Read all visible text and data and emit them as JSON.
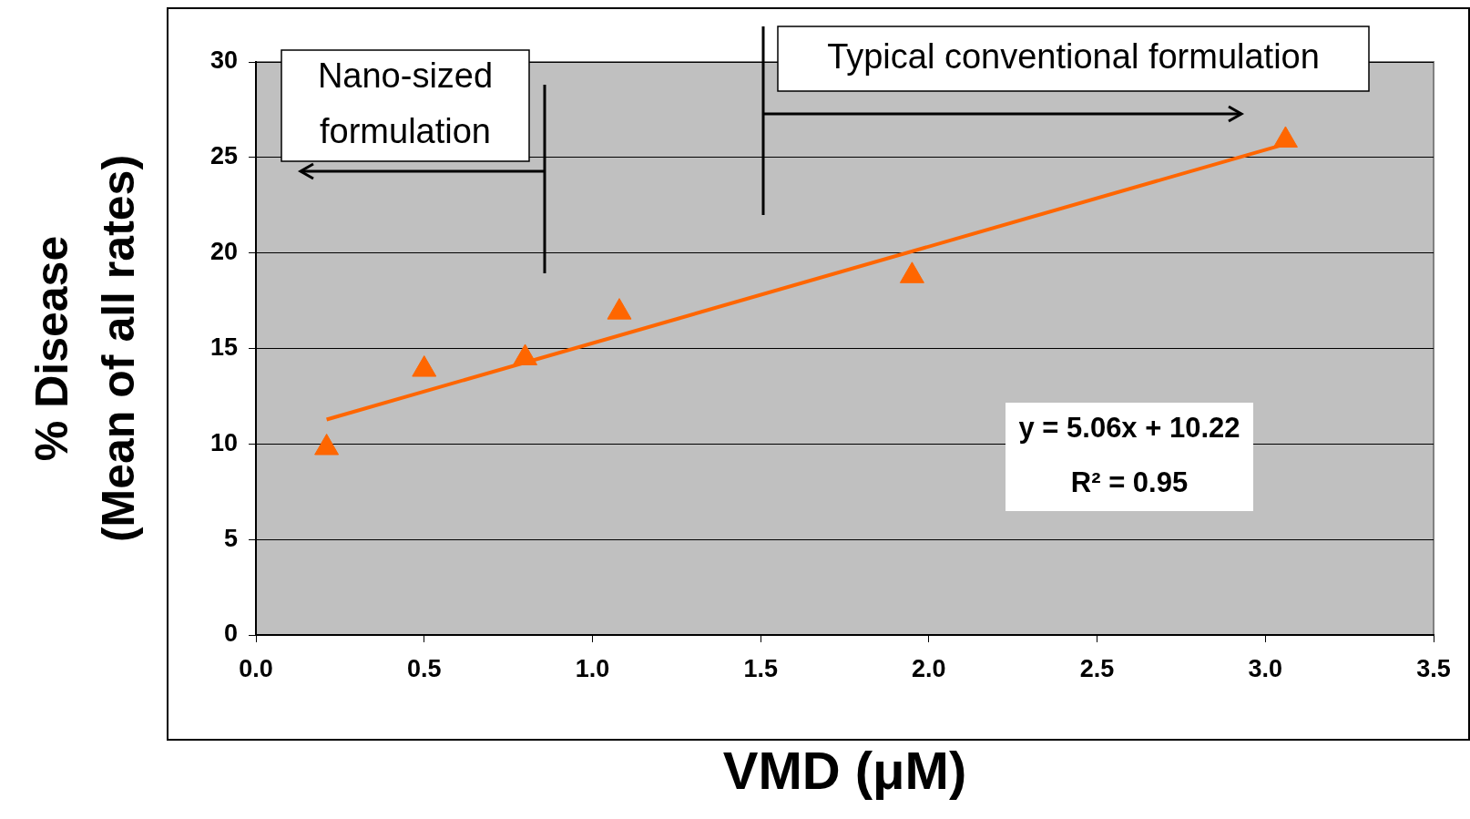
{
  "chart_data": {
    "type": "scatter",
    "xlabel": "VMD (μM)",
    "ylabel": "% Disease\n(Mean of all rates)",
    "series": [
      {
        "color": "#ff6600",
        "marker": "triangle",
        "x": [
          0.21,
          0.5,
          0.8,
          1.08,
          1.95,
          3.06
        ],
        "values": [
          9.8,
          13.9,
          14.5,
          16.9,
          18.8,
          25.9
        ]
      },
      {
        "type": "line",
        "color": "#ff6600",
        "marker": "none",
        "x": [
          0.21,
          3.06
        ],
        "values": [
          11.28,
          25.7
        ]
      }
    ],
    "xlim": [
      0,
      3.5
    ],
    "xticks": [
      {
        "value": 0,
        "label": "0.0"
      },
      {
        "value": 0.5,
        "label": "0.5"
      },
      {
        "value": 1,
        "label": "1.0"
      },
      {
        "value": 1.5,
        "label": "1.5"
      },
      {
        "value": 2,
        "label": "2.0"
      },
      {
        "value": 2.5,
        "label": "2.5"
      },
      {
        "value": 3,
        "label": "3.0"
      },
      {
        "value": 3.5,
        "label": "3.5"
      }
    ],
    "ylim": [
      0,
      30
    ],
    "yticks": [
      0,
      5,
      10,
      15,
      20,
      25,
      30
    ],
    "grid": "y",
    "legend": false,
    "annotations": [
      "Nano-sized\nformulation",
      "Typical conventional formulation",
      "y = 5.06x + 10.22\nR² = 0.95"
    ]
  }
}
